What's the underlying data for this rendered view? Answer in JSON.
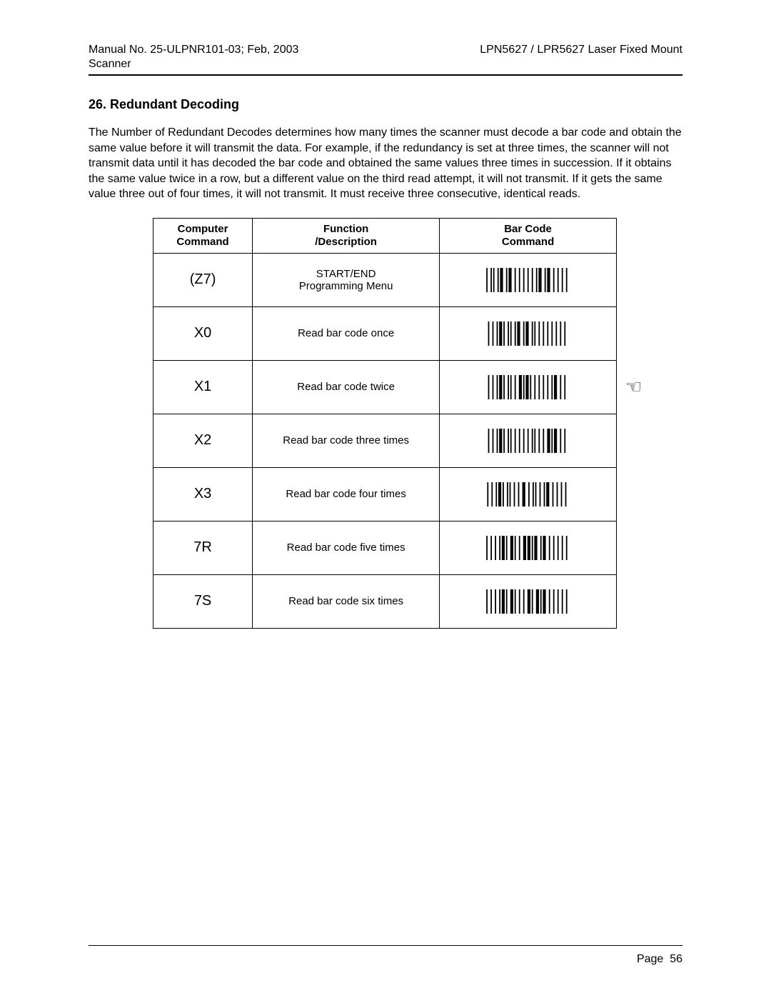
{
  "header": {
    "manual_no": "Manual No. 25-ULPNR101-03; Feb, 2003",
    "scanner_label": "Scanner",
    "product": "LPN5627 / LPR5627 Laser Fixed Mount"
  },
  "section": {
    "number": "26.",
    "title": "Redundant Decoding"
  },
  "paragraph": "The Number of Redundant Decodes determines how many times the scanner must decode a bar code and obtain the same value before it will transmit the data.  For example, if the redundancy is set at three times, the scanner will not transmit data until it has decoded the bar code and obtained the same values three times in succession.  If it obtains the same value twice in a row, but a different value on the third read attempt, it will not transmit.  If it gets the same value three out of four times, it will not transmit.  It must receive three consecutive, identical reads.",
  "table": {
    "headers": {
      "col1_line1": "Computer",
      "col1_line2": "Command",
      "col2_line1": "Function",
      "col2_line2": "/Description",
      "col3_line1": "Bar Code",
      "col3_line2": "Command"
    },
    "rows": [
      {
        "code": "(Z7)",
        "desc_line1": "START/END",
        "desc_line2": "Programming Menu",
        "bars": [
          1,
          3,
          1,
          1,
          1,
          3,
          2,
          1,
          3,
          3,
          1,
          1,
          3,
          3,
          2,
          3,
          1,
          3,
          1,
          3,
          1,
          3,
          1,
          3,
          1,
          1,
          3,
          3,
          1,
          1,
          3,
          3,
          1,
          3,
          1,
          3,
          1,
          3,
          1,
          3
        ]
      },
      {
        "code": "X0",
        "desc_line1": "Read bar code once",
        "desc_line2": "",
        "bars": [
          1,
          3,
          1,
          3,
          1,
          1,
          3,
          2,
          1,
          3,
          1,
          1,
          1,
          3,
          1,
          1,
          3,
          3,
          2,
          1,
          3,
          3,
          1,
          1,
          1,
          3,
          1,
          3,
          1,
          3,
          1,
          3,
          1,
          3,
          1,
          3,
          1,
          3,
          1,
          3
        ]
      },
      {
        "code": "X1",
        "desc_line1": "Read bar code twice",
        "desc_line2": "",
        "bars": [
          1,
          3,
          1,
          3,
          1,
          1,
          3,
          2,
          1,
          3,
          1,
          1,
          1,
          3,
          1,
          3,
          3,
          1,
          2,
          1,
          3,
          1,
          1,
          3,
          1,
          3,
          1,
          3,
          1,
          3,
          1,
          3,
          1,
          1,
          3,
          3,
          1,
          3,
          1,
          3
        ],
        "hand": true
      },
      {
        "code": "X2",
        "desc_line1": "Read bar code three times",
        "desc_line2": "",
        "bars": [
          1,
          3,
          1,
          3,
          1,
          1,
          3,
          2,
          1,
          3,
          1,
          1,
          1,
          3,
          1,
          3,
          1,
          3,
          2,
          3,
          1,
          3,
          1,
          1,
          1,
          3,
          1,
          3,
          1,
          3,
          3,
          1,
          1,
          1,
          3,
          3,
          1,
          3,
          1,
          3
        ]
      },
      {
        "code": "X3",
        "desc_line1": "Read bar code four times",
        "desc_line2": "",
        "bars": [
          1,
          3,
          1,
          3,
          1,
          1,
          3,
          2,
          1,
          3,
          1,
          1,
          1,
          3,
          1,
          3,
          1,
          3,
          3,
          3,
          1,
          3,
          1,
          1,
          1,
          3,
          1,
          3,
          1,
          1,
          3,
          3,
          1,
          3,
          1,
          3,
          1,
          3,
          1,
          3
        ]
      },
      {
        "code": "7R",
        "desc_line1": "Read bar code five times",
        "desc_line2": "",
        "bars": [
          1,
          3,
          1,
          3,
          1,
          3,
          1,
          1,
          3,
          2,
          1,
          3,
          3,
          1,
          1,
          3,
          1,
          3,
          3,
          1,
          3,
          1,
          1,
          1,
          3,
          3,
          1,
          1,
          3,
          3,
          1,
          3,
          1,
          3,
          1,
          3,
          1,
          3,
          1,
          3
        ]
      },
      {
        "code": "7S",
        "desc_line1": "Read bar code six times",
        "desc_line2": "",
        "bars": [
          1,
          3,
          1,
          3,
          1,
          3,
          1,
          1,
          3,
          2,
          1,
          3,
          3,
          1,
          1,
          3,
          1,
          3,
          1,
          3,
          3,
          1,
          1,
          3,
          3,
          1,
          1,
          1,
          3,
          3,
          1,
          3,
          1,
          3,
          1,
          3,
          1,
          3,
          1,
          3
        ]
      }
    ]
  },
  "barcode_style": {
    "height": 34,
    "width": 160,
    "thin": 1.8,
    "thick": 4.2,
    "gap": 1.6
  },
  "footer": {
    "page_label": "Page",
    "page_number": "56"
  }
}
